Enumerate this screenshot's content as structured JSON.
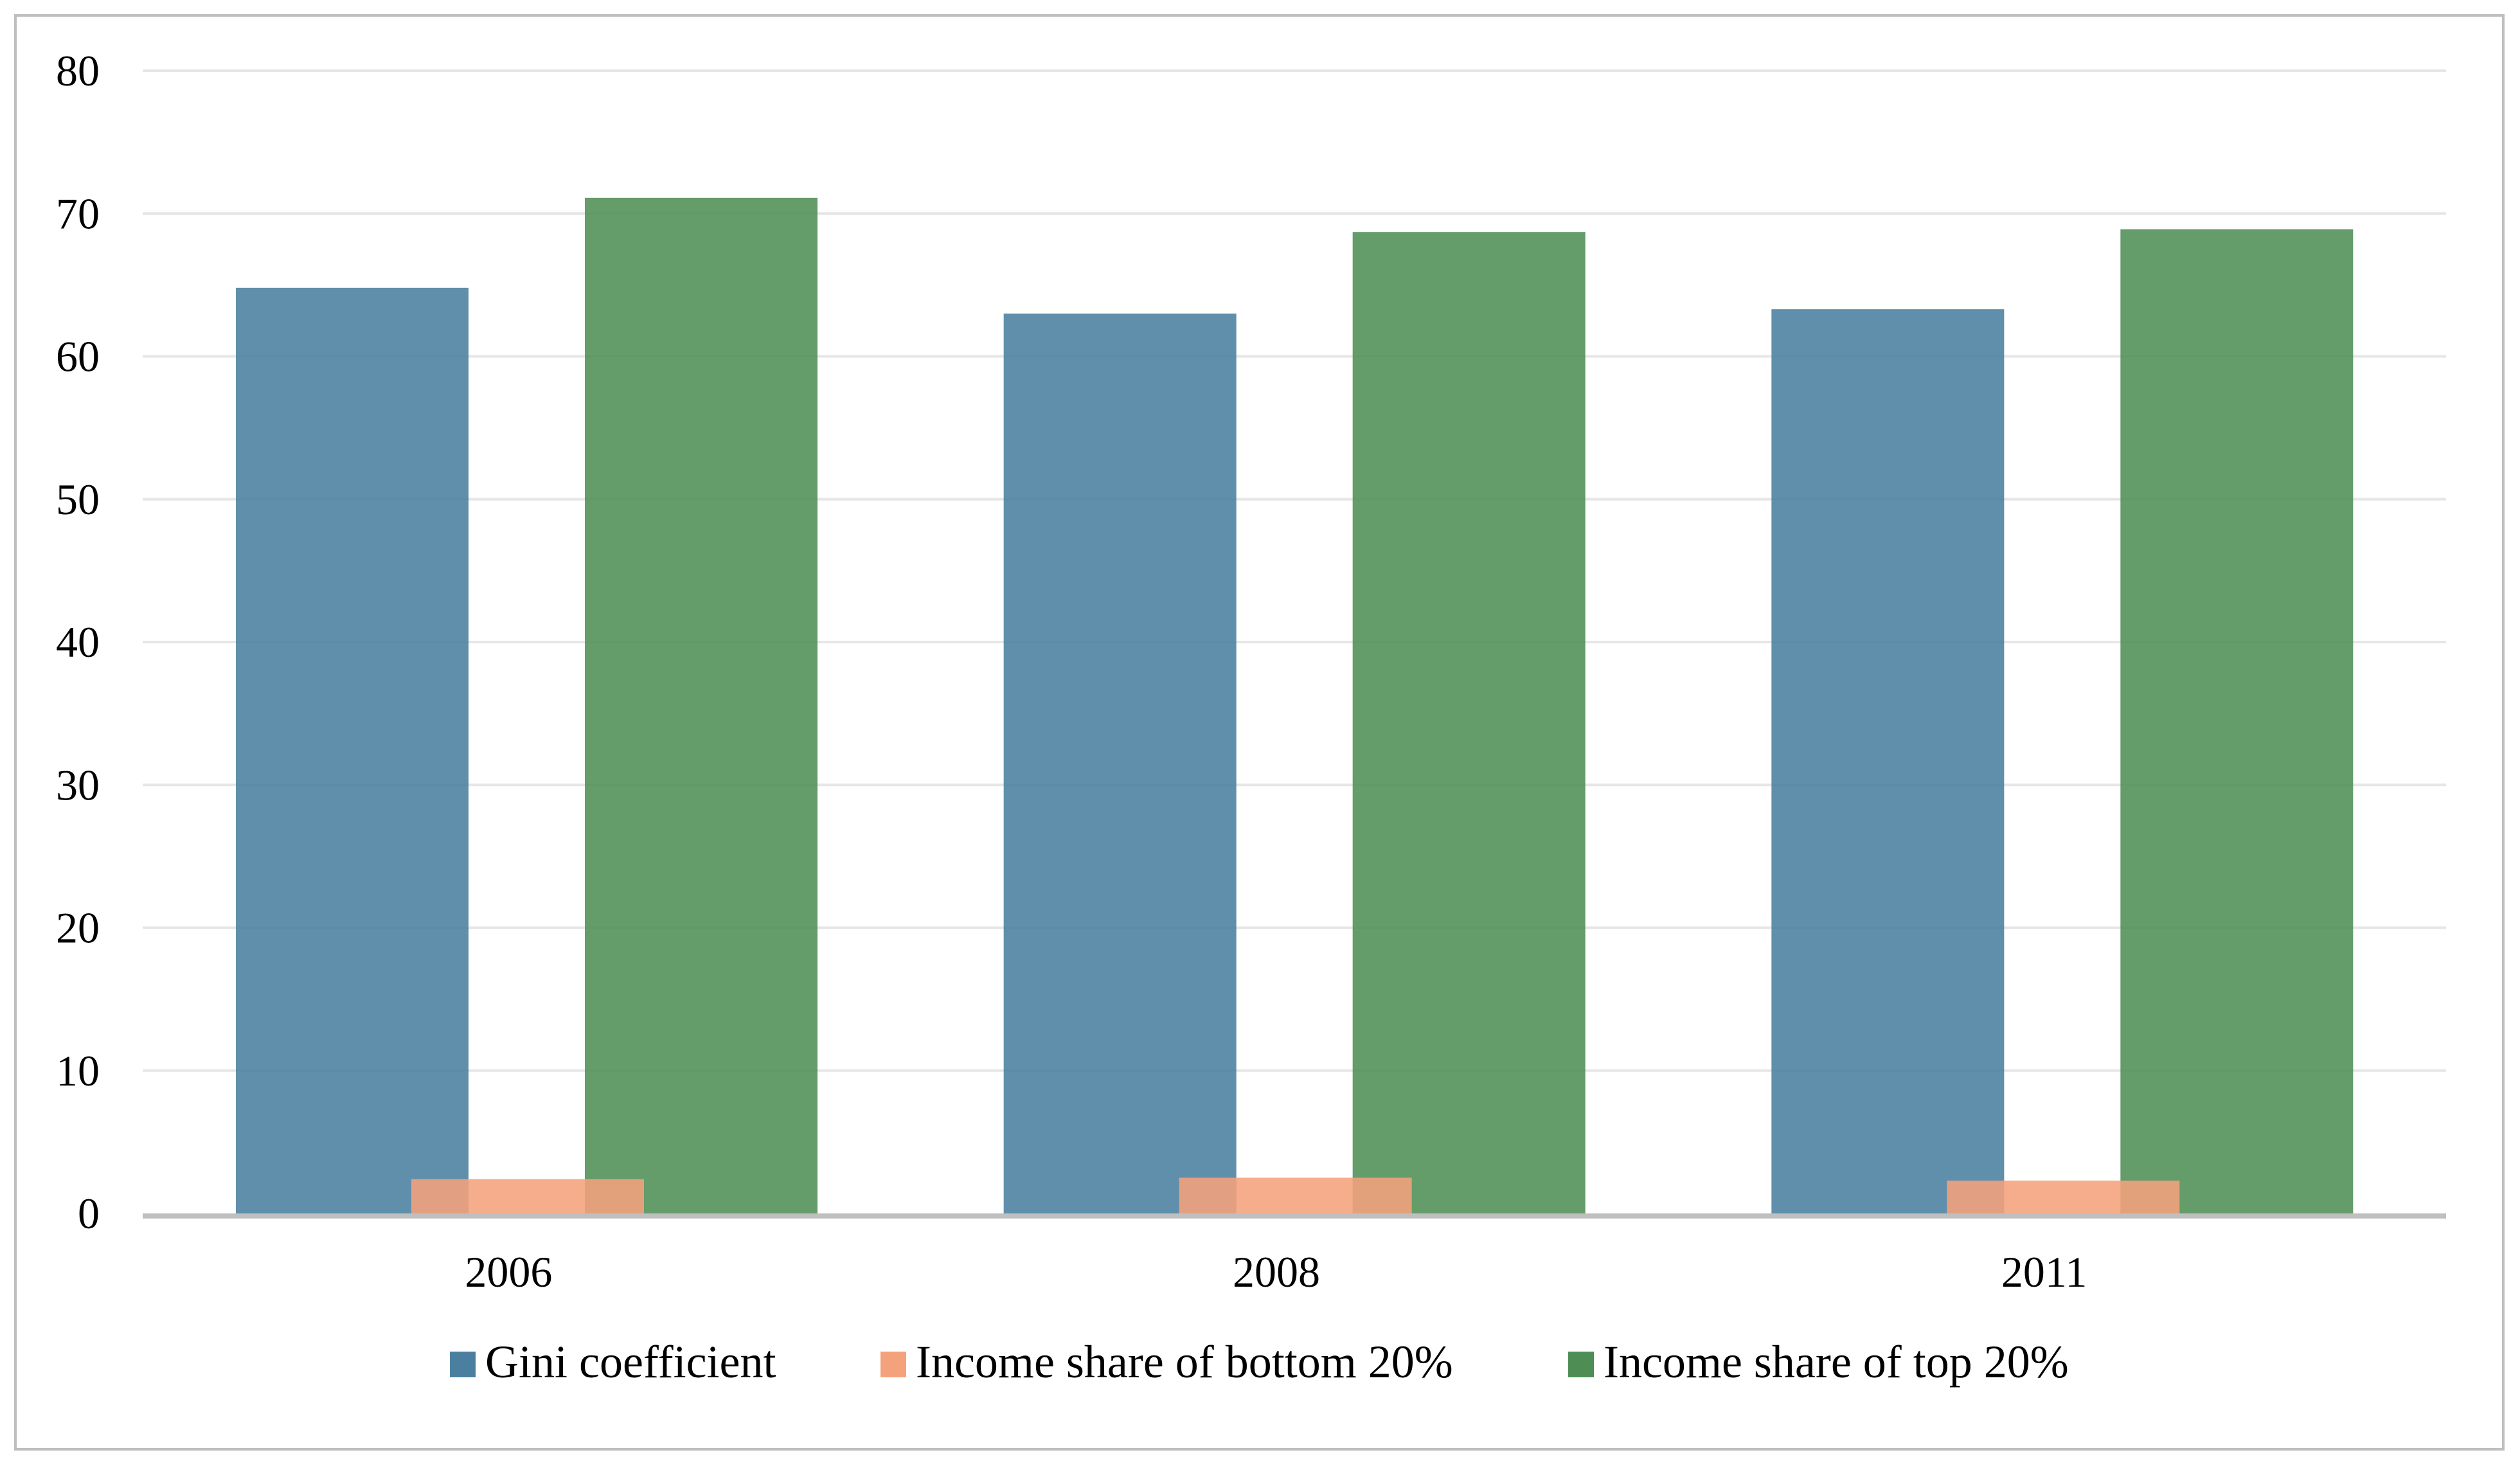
{
  "chart_data": {
    "type": "bar",
    "categories": [
      "2006",
      "2008",
      "2011"
    ],
    "series": [
      {
        "name": "Gini coefficient",
        "values": [
          64.8,
          63.0,
          63.3
        ],
        "color": "#4a7f9f"
      },
      {
        "name": "Income share of bottom 20%",
        "values": [
          2.4,
          2.5,
          2.3
        ],
        "color": "#f4a27c"
      },
      {
        "name": "Income share of top 20%",
        "values": [
          71.1,
          68.7,
          68.9
        ],
        "color": "#4e8e55"
      }
    ],
    "ylim": [
      0,
      80
    ],
    "yticks": [
      "0",
      "10",
      "20",
      "30",
      "40",
      "50",
      "60",
      "70",
      "80"
    ],
    "grid": true,
    "legend": "bottom",
    "title": "",
    "xlabel": "",
    "ylabel": ""
  }
}
